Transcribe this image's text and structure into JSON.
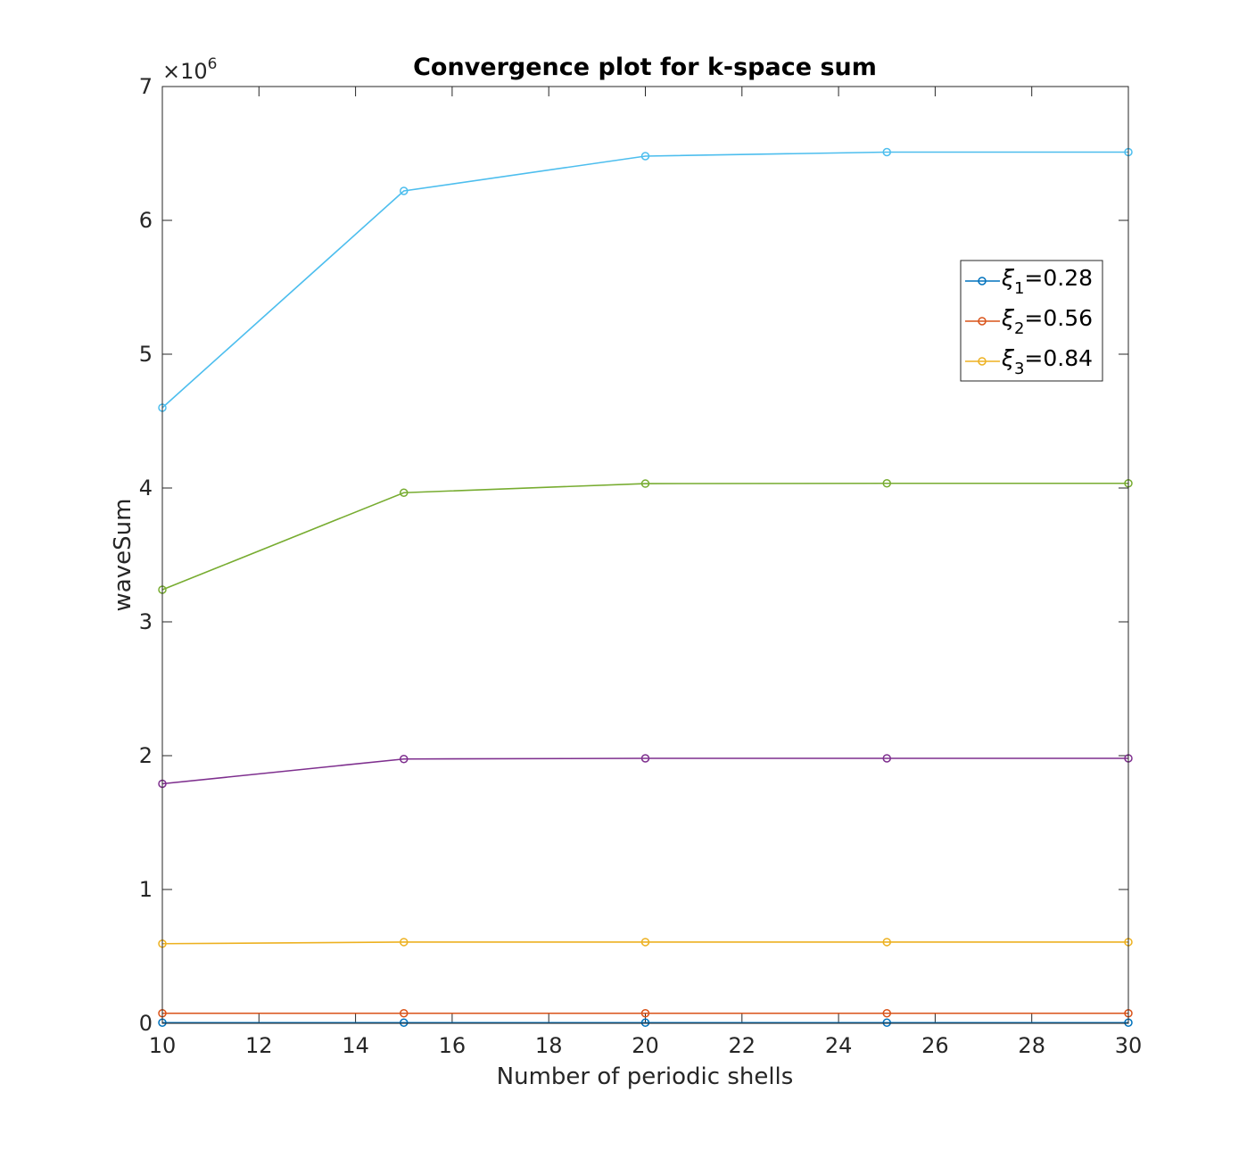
{
  "chart_data": {
    "type": "line",
    "title": "Convergence plot for k-space sum",
    "xlabel": "Number of periodic shells",
    "ylabel": "waveSum",
    "y_exponent_label": "×10",
    "y_exponent_power": "6",
    "xlim": [
      10,
      30
    ],
    "ylim": [
      0,
      7
    ],
    "y_scale": 1000000,
    "x_ticks": [
      10,
      12,
      14,
      16,
      18,
      20,
      22,
      24,
      26,
      28,
      30
    ],
    "y_ticks": [
      0,
      1,
      2,
      3,
      4,
      5,
      6,
      7
    ],
    "grid": false,
    "legend_placement": "upper-right",
    "x": [
      10,
      15,
      20,
      25,
      30
    ],
    "series": [
      {
        "name": "ξ1=0.28",
        "legend_symbol": "ξ",
        "legend_sub": "1",
        "legend_value": "=0.28",
        "color": "#0072BD",
        "values": [
          5000,
          5000,
          5000,
          5000,
          5000
        ]
      },
      {
        "name": "ξ2=0.56",
        "legend_symbol": "ξ",
        "legend_sub": "2",
        "legend_value": "=0.56",
        "color": "#D95319",
        "values": [
          75000,
          75000,
          75000,
          75000,
          75000
        ]
      },
      {
        "name": "ξ3=0.84",
        "legend_symbol": "ξ",
        "legend_sub": "3",
        "legend_value": "=0.84",
        "color": "#EDB120",
        "values": [
          595000,
          607000,
          607000,
          607000,
          607000
        ]
      },
      {
        "color": "#7E2F8E",
        "values": [
          1790000,
          1975000,
          1980000,
          1980000,
          1980000
        ]
      },
      {
        "color": "#77AC30",
        "values": [
          3240000,
          3965000,
          4033000,
          4035000,
          4035000
        ]
      },
      {
        "color": "#4DBEEE",
        "values": [
          4600000,
          6220000,
          6480000,
          6510000,
          6510000
        ]
      }
    ]
  }
}
